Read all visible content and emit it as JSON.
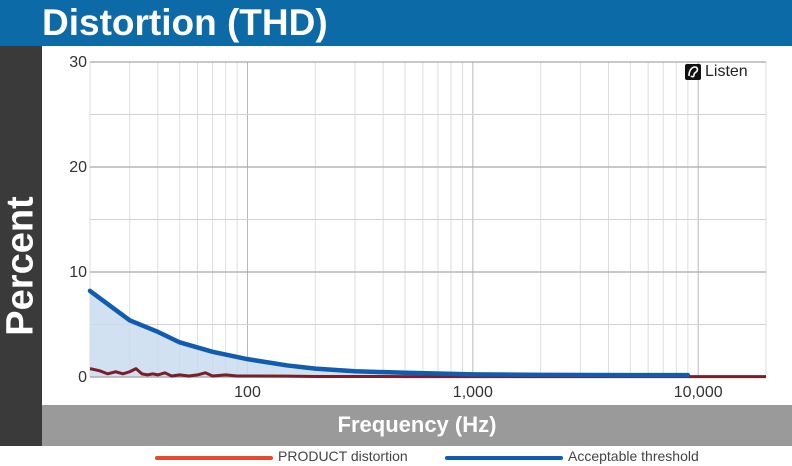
{
  "header": {
    "title": "Distortion (THD)"
  },
  "logo": {
    "text": "Listen"
  },
  "chart_data": {
    "type": "line",
    "xlabel": "Frequency (Hz)",
    "ylabel": "Percent",
    "x_scale": "log",
    "xlim": [
      20,
      20000
    ],
    "ylim": [
      0,
      30
    ],
    "grid": true,
    "legend_position": "bottom",
    "x_ticks": [
      {
        "value": 100,
        "label": "100"
      },
      {
        "value": 1000,
        "label": "1,000"
      },
      {
        "value": 10000,
        "label": "10,000"
      }
    ],
    "y_ticks": [
      {
        "value": 0,
        "label": "0"
      },
      {
        "value": 10,
        "label": "10"
      },
      {
        "value": 20,
        "label": "20"
      },
      {
        "value": 30,
        "label": "30"
      }
    ],
    "series": [
      {
        "name": "Acceptable threshold",
        "color": "#0f5cb0",
        "fill": "#c9dcf0",
        "points": [
          [
            20,
            8.2
          ],
          [
            30,
            5.4
          ],
          [
            40,
            4.3
          ],
          [
            50,
            3.3
          ],
          [
            70,
            2.4
          ],
          [
            100,
            1.7
          ],
          [
            150,
            1.1
          ],
          [
            200,
            0.8
          ],
          [
            300,
            0.55
          ],
          [
            500,
            0.4
          ],
          [
            1000,
            0.25
          ],
          [
            2000,
            0.2
          ],
          [
            5000,
            0.18
          ],
          [
            9000,
            0.18
          ]
        ]
      },
      {
        "name": "PRODUCT distortion",
        "color": "#e8492c",
        "dark_color": "#7a1f2a",
        "points": [
          [
            20,
            0.8
          ],
          [
            22,
            0.6
          ],
          [
            24,
            0.3
          ],
          [
            26,
            0.5
          ],
          [
            28,
            0.3
          ],
          [
            30,
            0.5
          ],
          [
            32,
            0.8
          ],
          [
            34,
            0.3
          ],
          [
            36,
            0.2
          ],
          [
            38,
            0.3
          ],
          [
            40,
            0.2
          ],
          [
            43,
            0.4
          ],
          [
            46,
            0.1
          ],
          [
            50,
            0.2
          ],
          [
            55,
            0.1
          ],
          [
            60,
            0.2
          ],
          [
            65,
            0.4
          ],
          [
            70,
            0.1
          ],
          [
            80,
            0.2
          ],
          [
            90,
            0.1
          ],
          [
            100,
            0.1
          ],
          [
            150,
            0.08
          ],
          [
            200,
            0.05
          ],
          [
            300,
            0.05
          ],
          [
            500,
            0.04
          ],
          [
            1000,
            0.03
          ],
          [
            2000,
            0.03
          ],
          [
            5000,
            0.03
          ],
          [
            10000,
            0.03
          ],
          [
            20000,
            0.03
          ]
        ]
      }
    ]
  }
}
